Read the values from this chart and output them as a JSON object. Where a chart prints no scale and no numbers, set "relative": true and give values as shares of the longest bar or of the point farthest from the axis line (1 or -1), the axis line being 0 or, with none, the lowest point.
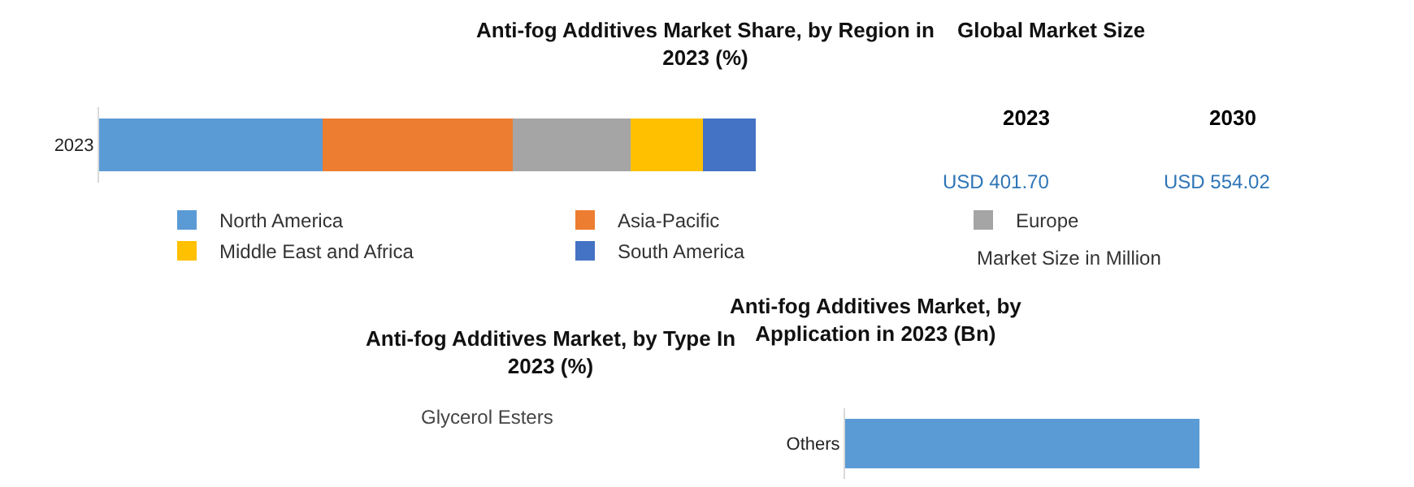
{
  "chart_data": [
    {
      "type": "bar",
      "title": "Anti-fog Additives Market Share, by Region in 2023 (%)",
      "orientation": "horizontal",
      "stacked": true,
      "relative": true,
      "categories": [
        "2023"
      ],
      "legend": "bottom",
      "series": [
        {
          "name": "North America",
          "color": "#5b9bd5",
          "values": [
            0.34
          ]
        },
        {
          "name": "Asia-Pacific",
          "color": "#ed7d31",
          "values": [
            0.29
          ]
        },
        {
          "name": "Europe",
          "color": "#a5a5a5",
          "values": [
            0.18
          ]
        },
        {
          "name": "Middle East and Africa",
          "color": "#ffc000",
          "values": [
            0.11
          ]
        },
        {
          "name": "South America",
          "color": "#4472c4",
          "values": [
            0.08
          ]
        }
      ]
    },
    {
      "type": "other",
      "title": "Global Market Size",
      "annotations": [
        "2023",
        "2030",
        "USD 401.70",
        "USD 554.02",
        "Market Size in Million"
      ]
    },
    {
      "type": "other",
      "title": "Anti-fog Additives Market, by Type In 2023 (%)",
      "annotations": [
        "Glycerol Esters"
      ]
    },
    {
      "type": "bar",
      "title": "Anti-fog Additives Market, by Application in 2023 (Bn)",
      "orientation": "horizontal",
      "relative": true,
      "categories": [
        "Others"
      ],
      "series": [
        {
          "color": "#5b9bd5",
          "values": [
            1
          ]
        }
      ]
    }
  ]
}
